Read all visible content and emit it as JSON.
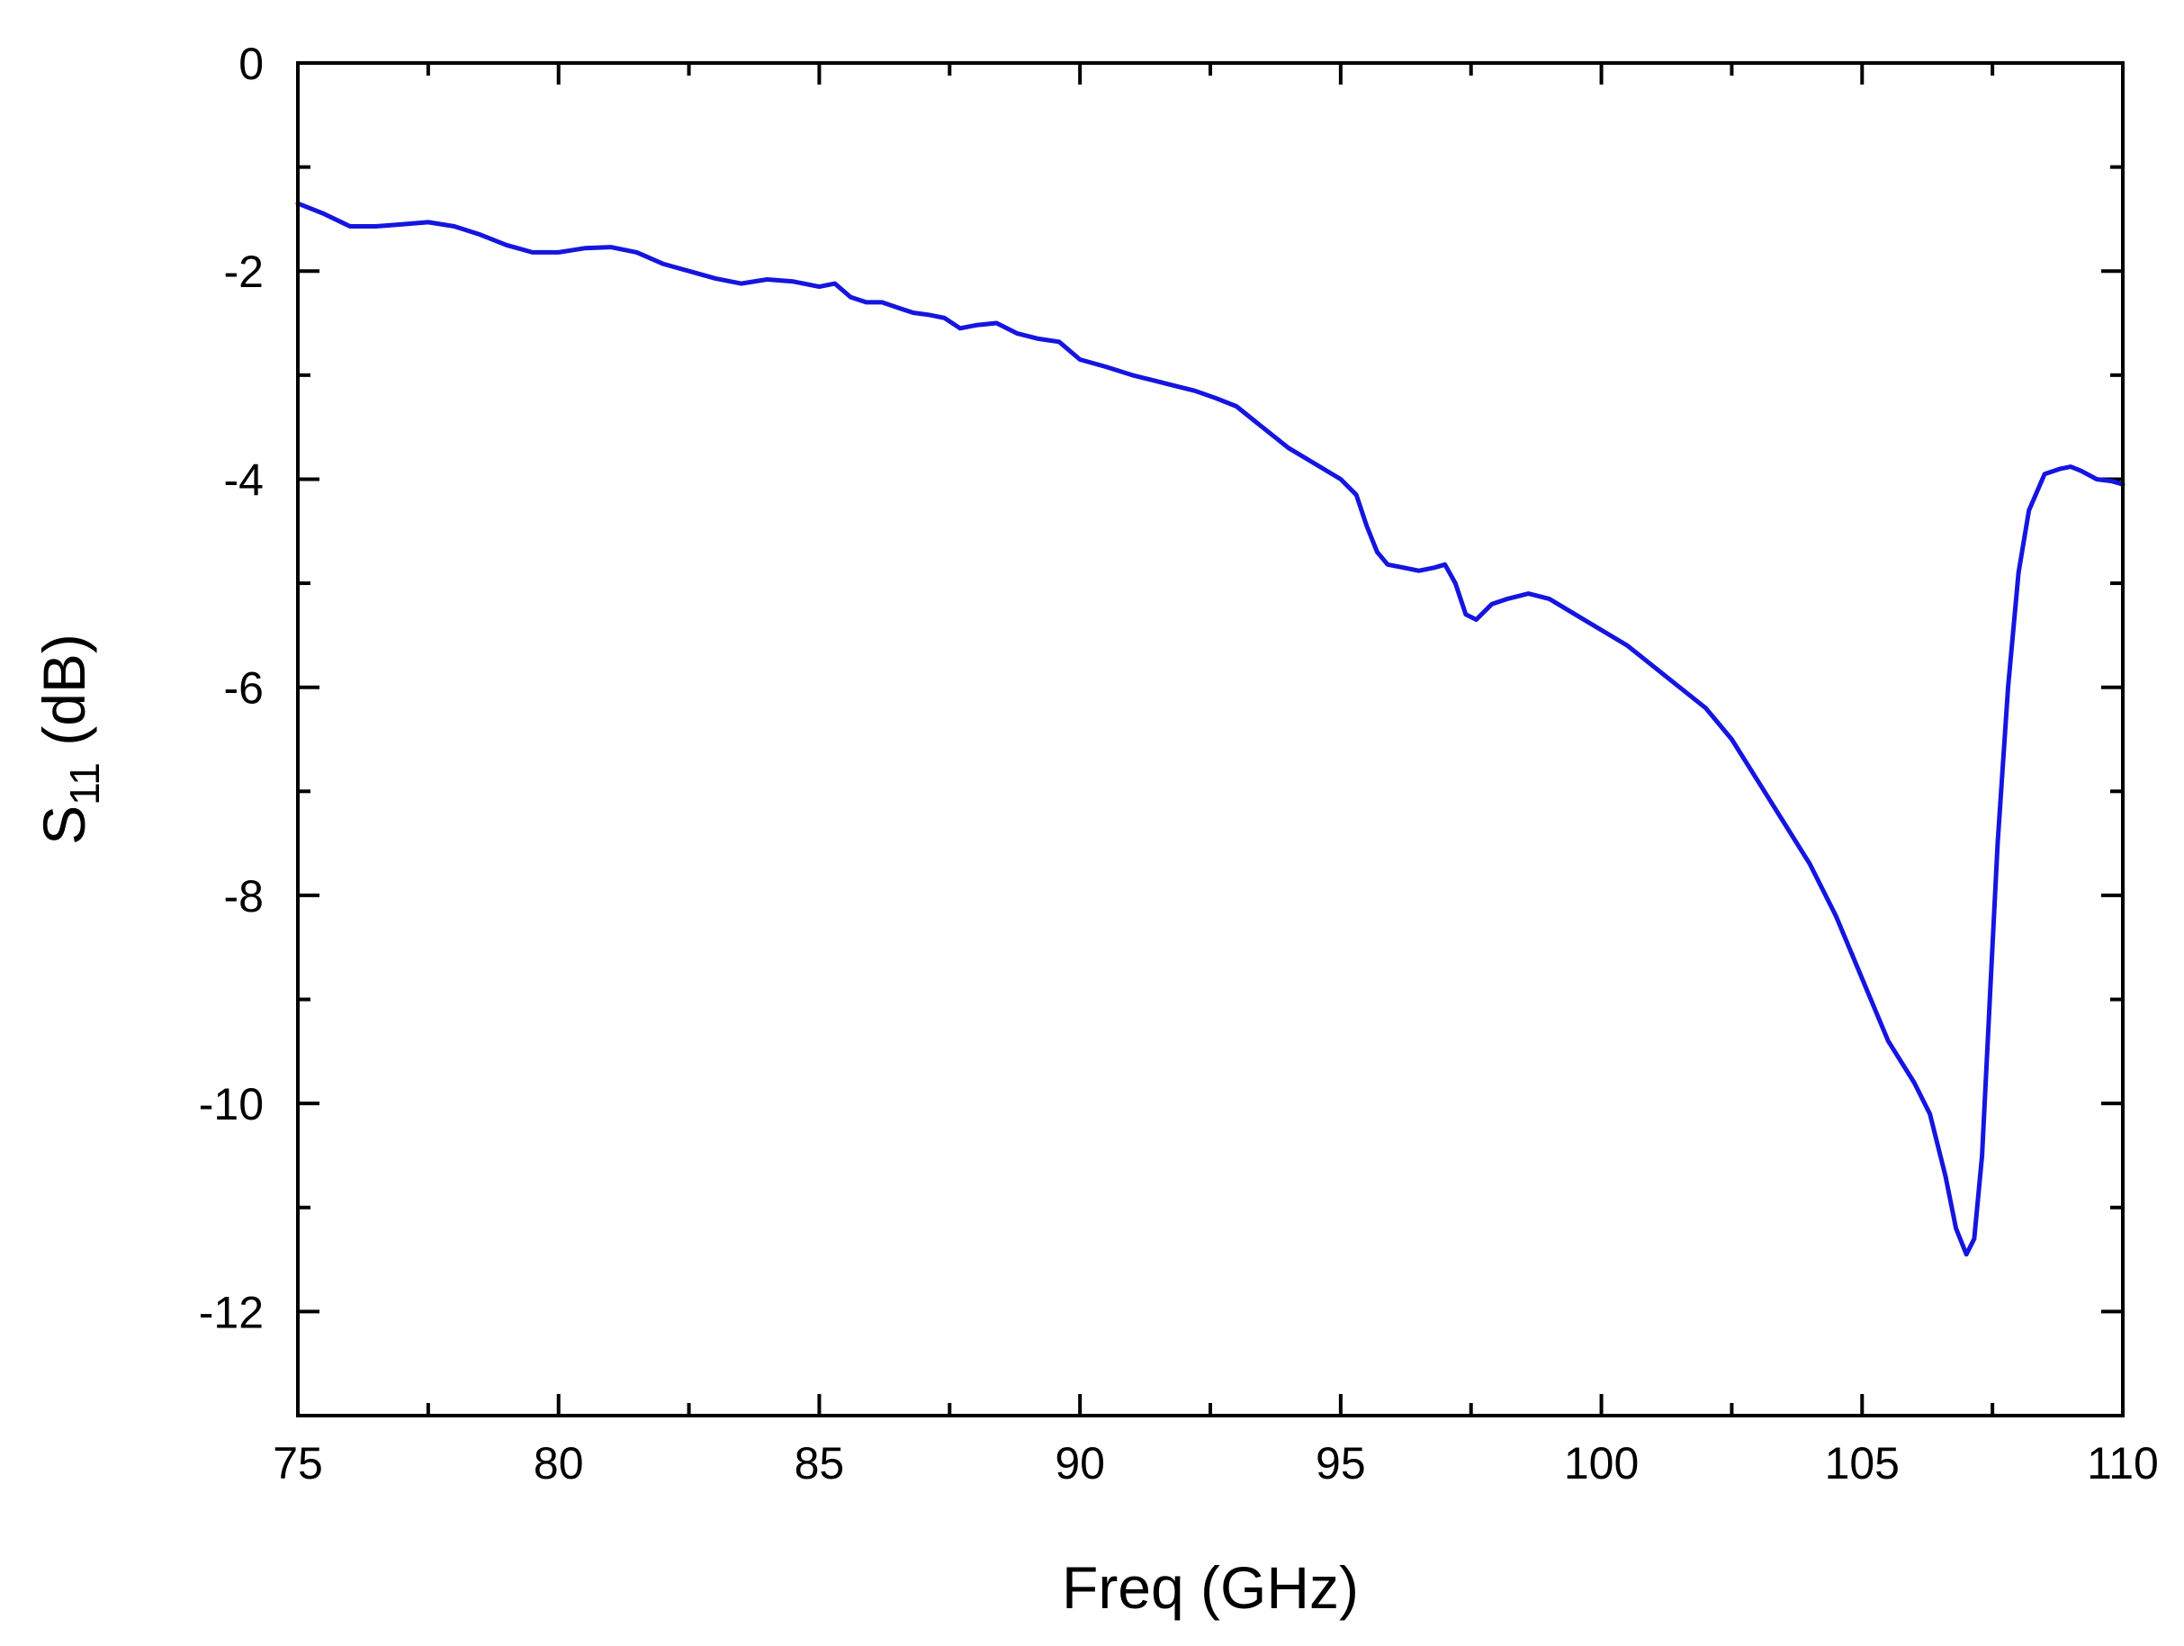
{
  "chart_data": {
    "type": "line",
    "title": "",
    "xlabel": "Freq (GHz)",
    "ylabel": {
      "main": "S",
      "subscript": "11",
      "unit": " (dB)"
    },
    "xlim": [
      75,
      110
    ],
    "ylim": [
      -13,
      0
    ],
    "xticks": [
      75,
      80,
      85,
      90,
      95,
      100,
      105,
      110
    ],
    "yticks": [
      0,
      -2,
      -4,
      -6,
      -8,
      -10,
      -12
    ],
    "xtick_labels": [
      "75",
      "80",
      "85",
      "90",
      "95",
      "100",
      "105",
      "110"
    ],
    "ytick_labels": [
      "0",
      "-2",
      "-4",
      "-6",
      "-8",
      "-10",
      "-12"
    ],
    "grid": false,
    "line_color": "#1515e0",
    "series": [
      {
        "x": [
          75.0,
          75.5,
          76.0,
          76.5,
          77.0,
          77.5,
          78.0,
          78.5,
          79.0,
          79.5,
          80.0,
          80.5,
          81.0,
          81.5,
          82.0,
          82.5,
          83.0,
          83.5,
          84.0,
          84.5,
          85.0,
          85.3,
          85.6,
          85.9,
          86.2,
          86.5,
          86.8,
          87.1,
          87.4,
          87.7,
          88.0,
          88.4,
          88.8,
          89.2,
          89.6,
          90.0,
          90.5,
          91.0,
          91.4,
          91.8,
          92.2,
          92.6,
          93.0,
          93.5,
          94.0,
          94.5,
          95.0,
          95.3,
          95.5,
          95.7,
          95.9,
          96.2,
          96.5,
          96.8,
          97.0,
          97.2,
          97.4,
          97.6,
          97.9,
          98.2,
          98.6,
          99.0,
          99.5,
          100.0,
          100.5,
          101.0,
          101.5,
          102.0,
          102.5,
          103.0,
          103.5,
          104.0,
          104.5,
          105.0,
          105.5,
          106.0,
          106.3,
          106.6,
          106.8,
          107.0,
          107.15,
          107.3,
          107.45,
          107.6,
          107.8,
          108.0,
          108.2,
          108.5,
          108.8,
          109.0,
          109.2,
          109.5,
          109.8,
          110.0
        ],
        "y": [
          -1.35,
          -1.45,
          -1.57,
          -1.57,
          -1.55,
          -1.53,
          -1.57,
          -1.65,
          -1.75,
          -1.82,
          -1.82,
          -1.78,
          -1.77,
          -1.82,
          -1.93,
          -2.0,
          -2.07,
          -2.12,
          -2.08,
          -2.1,
          -2.15,
          -2.12,
          -2.25,
          -2.3,
          -2.3,
          -2.35,
          -2.4,
          -2.42,
          -2.45,
          -2.55,
          -2.52,
          -2.5,
          -2.6,
          -2.65,
          -2.68,
          -2.85,
          -2.92,
          -3.0,
          -3.05,
          -3.1,
          -3.15,
          -3.22,
          -3.3,
          -3.5,
          -3.7,
          -3.85,
          -4.0,
          -4.15,
          -4.45,
          -4.7,
          -4.82,
          -4.85,
          -4.88,
          -4.85,
          -4.82,
          -5.0,
          -5.3,
          -5.35,
          -5.2,
          -5.15,
          -5.1,
          -5.15,
          -5.3,
          -5.45,
          -5.6,
          -5.8,
          -6.0,
          -6.2,
          -6.5,
          -6.9,
          -7.3,
          -7.7,
          -8.2,
          -8.8,
          -9.4,
          -9.8,
          -10.1,
          -10.7,
          -11.2,
          -11.45,
          -11.3,
          -10.5,
          -9.0,
          -7.5,
          -6.0,
          -4.9,
          -4.3,
          -3.95,
          -3.9,
          -3.88,
          -3.92,
          -4.0,
          -4.02,
          -4.05
        ]
      }
    ]
  }
}
